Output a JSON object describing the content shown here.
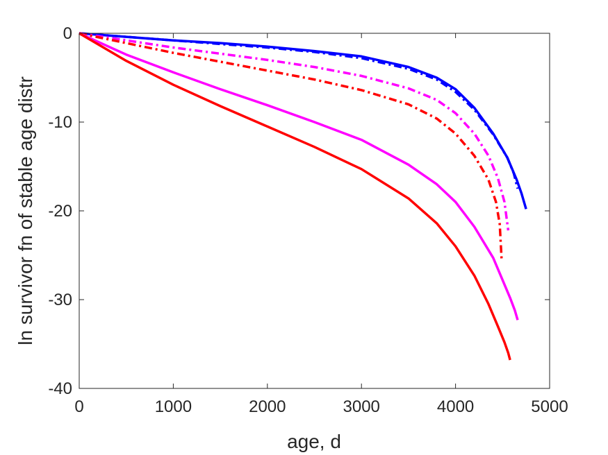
{
  "chart_data": {
    "type": "line",
    "title": "",
    "xlabel": "age, d",
    "ylabel": "ln survivor fn of stable age distr",
    "xlim": [
      0,
      5000
    ],
    "ylim": [
      -40,
      0
    ],
    "xticks": [
      0,
      1000,
      2000,
      3000,
      4000,
      5000
    ],
    "yticks": [
      0,
      -10,
      -20,
      -30,
      -40
    ],
    "grid": false,
    "legend": "none",
    "series": [
      {
        "color": "#0000ff",
        "style": "solid",
        "x": [
          0,
          500,
          1000,
          1500,
          2000,
          2500,
          3000,
          3500,
          3800,
          4000,
          4200,
          4400,
          4550,
          4650,
          4700,
          4750
        ],
        "y": [
          0,
          -0.4,
          -0.8,
          -1.1,
          -1.5,
          -2.0,
          -2.6,
          -3.8,
          -5.0,
          -6.3,
          -8.4,
          -11.3,
          -14.0,
          -16.5,
          -18.0,
          -19.8
        ]
      },
      {
        "color": "#0000ff",
        "style": "dashdot",
        "x": [
          0,
          500,
          1000,
          1500,
          2000,
          2500,
          3000,
          3500,
          3800,
          4000,
          4200,
          4400,
          4550,
          4620,
          4660
        ],
        "y": [
          0,
          -0.4,
          -0.8,
          -1.2,
          -1.6,
          -2.1,
          -2.8,
          -4.0,
          -5.2,
          -6.6,
          -8.6,
          -11.4,
          -14.0,
          -15.8,
          -17.5
        ]
      },
      {
        "color": "#ff00ff",
        "style": "dashdot",
        "x": [
          0,
          500,
          1000,
          1500,
          2000,
          2500,
          3000,
          3500,
          3800,
          4000,
          4200,
          4350,
          4450,
          4520,
          4560
        ],
        "y": [
          0,
          -0.8,
          -1.6,
          -2.3,
          -3.0,
          -3.8,
          -4.8,
          -6.2,
          -7.5,
          -9.0,
          -11.3,
          -13.8,
          -16.3,
          -19.0,
          -22.2
        ]
      },
      {
        "color": "#ff0000",
        "style": "dashdot",
        "x": [
          0,
          500,
          1000,
          1500,
          2000,
          2500,
          3000,
          3500,
          3800,
          4000,
          4200,
          4350,
          4430,
          4470,
          4490
        ],
        "y": [
          0,
          -1.1,
          -2.2,
          -3.2,
          -4.2,
          -5.2,
          -6.4,
          -8.0,
          -9.6,
          -11.3,
          -13.8,
          -16.5,
          -19.0,
          -21.5,
          -25.5
        ]
      },
      {
        "color": "#ff00ff",
        "style": "solid",
        "x": [
          0,
          500,
          1000,
          1500,
          2000,
          2500,
          3000,
          3500,
          3800,
          4000,
          4200,
          4400,
          4500,
          4580,
          4630,
          4660
        ],
        "y": [
          0,
          -2.4,
          -4.4,
          -6.3,
          -8.1,
          -10.0,
          -12.0,
          -14.8,
          -17.0,
          -19.0,
          -21.8,
          -25.3,
          -27.8,
          -29.8,
          -31.2,
          -32.3
        ]
      },
      {
        "color": "#ff0000",
        "style": "solid",
        "x": [
          0,
          500,
          1000,
          1500,
          2000,
          2500,
          3000,
          3500,
          3800,
          4000,
          4200,
          4350,
          4450,
          4520,
          4560,
          4580
        ],
        "y": [
          0,
          -3.1,
          -5.8,
          -8.2,
          -10.5,
          -12.8,
          -15.3,
          -18.6,
          -21.4,
          -24.0,
          -27.3,
          -30.5,
          -33.0,
          -34.8,
          -36.0,
          -36.8
        ]
      }
    ]
  }
}
